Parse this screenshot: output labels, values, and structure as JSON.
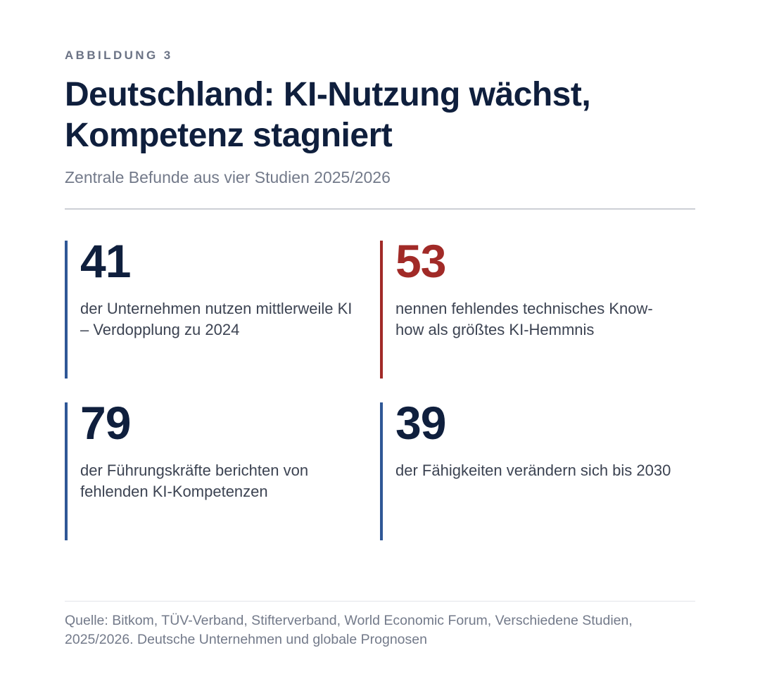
{
  "figure": {
    "overline": "ABBILDUNG 3",
    "title_line1": "Deutschland: KI-Nutzung wächst,",
    "title_line2": "Kompetenz stagniert",
    "subtitle": "Zentrale Befunde aus vier Studien 2025/2026"
  },
  "stats": [
    {
      "value": "41",
      "description": "der Unternehmen nutzen mittlerweile KI – Verdopplung zu 2024",
      "accent": "#2f5796"
    },
    {
      "value": "53",
      "description": "nennen fehlendes technisches Know-how als größtes KI-Hemmnis",
      "accent": "#a12a27"
    },
    {
      "value": "79",
      "description": "der Führungskräfte berichten von fehlenden KI-Kompetenzen",
      "accent": "#2f5796"
    },
    {
      "value": "39",
      "description": "der Fähigkeiten verändern sich bis 2030",
      "accent": "#2f5796"
    }
  ],
  "source": {
    "text": "Quelle: Bitkom, TÜV-Verband, Stifterverband, World Economic Forum, Verschiedene Studien, 2025/2026. Deutsche Unternehmen und globale Prognosen"
  },
  "colors": {
    "title": "#0f1f3d",
    "muted": "#737a8a",
    "blue_accent": "#2f5796",
    "red_accent": "#a12a27"
  }
}
